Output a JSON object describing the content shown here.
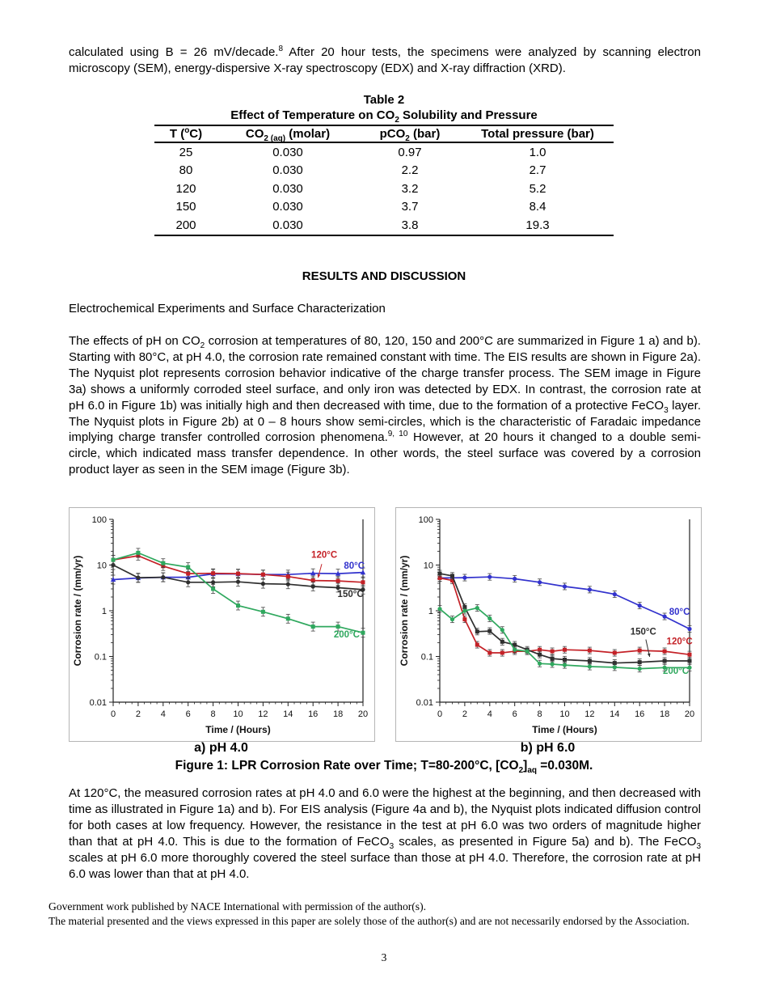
{
  "paragraphs": {
    "p1": "calculated using B = 26 mV/decade.<sup>8</sup> After 20 hour tests, the specimens were analyzed by scanning electron microscopy (SEM), energy-dispersive X-ray spectroscopy (EDX) and X-ray diffraction (XRD).",
    "p2": "The effects of pH on CO<sub>2</sub> corrosion at temperatures of 80, 120, 150 and 200°C are summarized in Figure 1 a) and b). Starting with 80°C, at pH 4.0, the corrosion rate remained constant with time. The EIS results are shown in Figure 2a). The Nyquist plot represents corrosion behavior indicative of the charge transfer process. The SEM image in Figure 3a) shows a uniformly corroded steel surface, and only iron was detected by EDX. In contrast, the corrosion rate at pH 6.0 in Figure 1b) was initially high and then decreased with time, due to the formation of a protective FeCO<sub>3</sub> layer. The Nyquist plots in Figure 2b) at 0 – 8 hours show semi-circles, which is the characteristic of Faradaic impedance implying charge transfer controlled corrosion phenomena.<sup>9, 10</sup> However, at 20 hours it changed to a double semi-circle, which indicated mass transfer dependence. In other words, the steel surface was covered by a corrosion product layer as seen in the SEM image (Figure 3b).",
    "p3": "At 120°C, the measured corrosion rates at pH 4.0 and 6.0 were the highest at the beginning, and then decreased with time as illustrated in Figure 1a) and b). For EIS analysis (Figure 4a and b), the Nyquist plots indicated diffusion control for both cases at low frequency. However, the resistance in the test at pH 6.0 was two orders of magnitude higher than that at pH 4.0. This is due to the formation of FeCO<sub>3</sub> scales, as presented in Figure 5a) and b). The FeCO<sub>3</sub> scales at pH 6.0 more thoroughly covered the steel surface than those at pH 4.0. Therefore, the corrosion rate at pH 6.0 was lower than that at pH 4.0."
  },
  "headings": {
    "results": "RESULTS AND DISCUSSION",
    "subsection": "Electrochemical Experiments and Surface Characterization"
  },
  "table": {
    "title_line1": "Table 2",
    "title_line2": "Effect of Temperature on CO<sub>2</sub> Solubility and Pressure",
    "headers": [
      "T (<sup>o</sup>C)",
      "CO<sub>2 (aq)</sub> (molar)",
      "pCO<sub>2</sub> (bar)",
      "Total pressure (bar)"
    ],
    "rows": [
      [
        "25",
        "0.030",
        "0.97",
        "1.0"
      ],
      [
        "80",
        "0.030",
        "2.2",
        "2.7"
      ],
      [
        "120",
        "0.030",
        "3.2",
        "5.2"
      ],
      [
        "150",
        "0.030",
        "3.7",
        "8.4"
      ],
      [
        "200",
        "0.030",
        "3.8",
        "19.3"
      ]
    ]
  },
  "figure": {
    "caption_a": "a) pH 4.0",
    "caption_b": "b) pH 6.0",
    "caption_main": "Figure 1: LPR Corrosion Rate over Time; T=80-200°C, [CO<sub>2</sub>]<sub>aq</sub> =0.030M."
  },
  "footer": {
    "line1": "Government work published by NACE International with permission of the author(s).",
    "line2": "The material presented and the views expressed in this paper are solely those of the author(s) and are not necessarily endorsed by the Association.",
    "page_number": "3"
  },
  "chart_data": [
    {
      "id": "figure-1a",
      "type": "line",
      "title": "a) pH 4.0",
      "xlabel": "Time / (Hours)",
      "ylabel": "Corrosion rate / (mm/yr)",
      "xlim": [
        0,
        20
      ],
      "x_ticks": [
        0,
        2,
        4,
        6,
        8,
        10,
        12,
        14,
        16,
        18,
        20
      ],
      "y_scale": "log",
      "ylim": [
        0.01,
        100
      ],
      "y_ticks": [
        100,
        10,
        1,
        0.1,
        0.01
      ],
      "grid": false,
      "legend": "inline-annotations",
      "err_factor": 1.25,
      "series": [
        {
          "name": "80°C",
          "color": "#3232cd",
          "marker": "triangle",
          "x": [
            0,
            2,
            4,
            6,
            8,
            10,
            12,
            14,
            16,
            18,
            20
          ],
          "y": [
            4.8,
            5.2,
            5.4,
            5.4,
            6.4,
            6.4,
            6.2,
            6.2,
            6.6,
            6.5,
            6.9
          ]
        },
        {
          "name": "120°C",
          "color": "#c42127",
          "marker": "square",
          "x": [
            0,
            2,
            4,
            6,
            8,
            10,
            12,
            14,
            16,
            18,
            20
          ],
          "y": [
            13,
            16,
            9.5,
            6.5,
            6.6,
            6.5,
            6.2,
            5.6,
            4.6,
            4.5,
            4.2
          ]
        },
        {
          "name": "150°C",
          "color": "#2f2f2f",
          "marker": "circle",
          "x": [
            0,
            2,
            4,
            6,
            8,
            10,
            12,
            14,
            16,
            18,
            20
          ],
          "y": [
            10,
            5.3,
            5.4,
            4.2,
            4.2,
            4.3,
            3.9,
            3.8,
            3.4,
            3.2,
            2.9
          ]
        },
        {
          "name": "200°C",
          "color": "#2fa85e",
          "marker": "square",
          "x": [
            0,
            2,
            4,
            6,
            8,
            10,
            12,
            14,
            16,
            18,
            20
          ],
          "y": [
            13,
            18.5,
            11,
            9,
            3.0,
            1.3,
            0.95,
            0.67,
            0.45,
            0.45,
            0.33
          ]
        }
      ],
      "annotations": [
        {
          "text": "120°C",
          "color": "#c42127",
          "x": 16.9,
          "y": 14.5,
          "arrow": {
            "from_x": 16.7,
            "from_y": 10.5,
            "to_x": 16.4,
            "to_y": 5.3
          }
        },
        {
          "text": "80°C",
          "color": "#3232cd",
          "x": 19.3,
          "y": 8.4
        },
        {
          "text": "150°C",
          "color": "#2f2f2f",
          "x": 19.0,
          "y": 2.0
        },
        {
          "text": "200°C",
          "color": "#2fa85e",
          "x": 18.7,
          "y": 0.26
        }
      ]
    },
    {
      "id": "figure-1b",
      "type": "line",
      "title": "b) pH 6.0",
      "xlabel": "Time / (Hours)",
      "ylabel": "Corrosion rate / (mm/yr)",
      "xlim": [
        0,
        20
      ],
      "x_ticks": [
        0,
        2,
        4,
        6,
        8,
        10,
        12,
        14,
        16,
        18,
        20
      ],
      "y_scale": "log",
      "ylim": [
        0.01,
        100
      ],
      "y_ticks": [
        100,
        10,
        1,
        0.1,
        0.01
      ],
      "grid": false,
      "legend": "inline-annotations",
      "err_factor": 1.18,
      "series": [
        {
          "name": "80°C",
          "color": "#3232cd",
          "marker": "circle",
          "x": [
            0,
            2,
            4,
            6,
            8,
            10,
            12,
            14,
            16,
            18,
            20
          ],
          "y": [
            5.2,
            5.3,
            5.5,
            5.0,
            4.2,
            3.4,
            2.9,
            2.3,
            1.3,
            0.75,
            0.4
          ]
        },
        {
          "name": "120°C",
          "color": "#c42127",
          "marker": "square",
          "x": [
            0,
            1,
            2,
            3,
            4,
            5,
            6,
            7,
            8,
            9,
            10,
            12,
            14,
            16,
            18,
            20
          ],
          "y": [
            5.2,
            4.6,
            0.65,
            0.18,
            0.12,
            0.12,
            0.13,
            0.13,
            0.14,
            0.13,
            0.14,
            0.135,
            0.12,
            0.135,
            0.13,
            0.11
          ]
        },
        {
          "name": "150°C",
          "color": "#2f2f2f",
          "marker": "square",
          "x": [
            0,
            1,
            2,
            3,
            4,
            5,
            6,
            7,
            8,
            9,
            10,
            12,
            14,
            16,
            18,
            20
          ],
          "y": [
            6.5,
            5.8,
            1.2,
            0.35,
            0.36,
            0.21,
            0.18,
            0.14,
            0.11,
            0.09,
            0.085,
            0.08,
            0.072,
            0.075,
            0.08,
            0.08
          ]
        },
        {
          "name": "200°C",
          "color": "#2fa85e",
          "marker": "circle",
          "x": [
            0,
            1,
            2,
            3,
            4,
            5,
            6,
            7,
            8,
            9,
            10,
            12,
            14,
            16,
            18,
            20
          ],
          "y": [
            1.1,
            0.65,
            1.0,
            1.15,
            0.68,
            0.38,
            0.14,
            0.13,
            0.07,
            0.068,
            0.065,
            0.06,
            0.058,
            0.054,
            0.057,
            0.057
          ]
        }
      ],
      "annotations": [
        {
          "text": "80°C",
          "color": "#3232cd",
          "x": 19.2,
          "y": 0.82
        },
        {
          "text": "150°C",
          "color": "#2f2f2f",
          "x": 16.3,
          "y": 0.3,
          "arrow": {
            "from_x": 16.5,
            "from_y": 0.235,
            "to_x": 16.8,
            "to_y": 0.098
          }
        },
        {
          "text": "120°C",
          "color": "#c42127",
          "x": 19.2,
          "y": 0.185
        },
        {
          "text": "200°C",
          "color": "#2fa85e",
          "x": 18.9,
          "y": 0.042
        }
      ]
    }
  ]
}
